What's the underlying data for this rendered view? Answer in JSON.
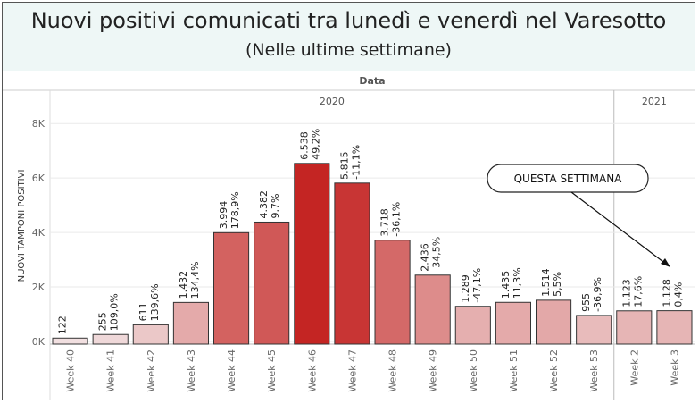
{
  "title": "Nuovi positivi comunicati tra lunedì e venerdì nel Varesotto",
  "subtitle": "(Nelle ultime settimane)",
  "chart_data": {
    "type": "bar",
    "header": "Data",
    "year_groups": [
      {
        "label": "2020",
        "count": 14
      },
      {
        "label": "2021",
        "count": 2
      }
    ],
    "categories": [
      "Week 40",
      "Week 41",
      "Week 42",
      "Week 43",
      "Week 44",
      "Week 45",
      "Week 46",
      "Week 47",
      "Week 48",
      "Week 49",
      "Week 50",
      "Week 51",
      "Week 52",
      "Week 53",
      "Week 2",
      "Week 3"
    ],
    "values": [
      122,
      255,
      611,
      1432,
      3994,
      4382,
      6538,
      5815,
      3718,
      2436,
      1289,
      1435,
      1514,
      955,
      1123,
      1128
    ],
    "value_labels": [
      "122",
      "255",
      "611",
      "1.432",
      "3.994",
      "4.382",
      "6.538",
      "5.815",
      "3.718",
      "2.436",
      "1.289",
      "1.435",
      "1.514",
      "955",
      "1.123",
      "1.128"
    ],
    "change_labels": [
      "",
      "109,0%",
      "139,6%",
      "134,4%",
      "178,9%",
      "9,7%",
      "49,2%",
      "-11,1%",
      "-36,1%",
      "-34,5%",
      "-47,1%",
      "11,3%",
      "5,5%",
      "-36,9%",
      "17,6%",
      "0,4%"
    ],
    "ylabel": "NUOVI TAMPONI POSITIVI",
    "yticks": [
      0,
      2000,
      4000,
      6000,
      8000
    ],
    "ytick_labels": [
      "0K",
      "2K",
      "4K",
      "6K",
      "8K"
    ],
    "ylim": [
      0,
      8500
    ],
    "grid": true,
    "color_low": "#f3e9ea",
    "color_high": "#c42523",
    "callout": "QUESTA SETTIMANA"
  }
}
